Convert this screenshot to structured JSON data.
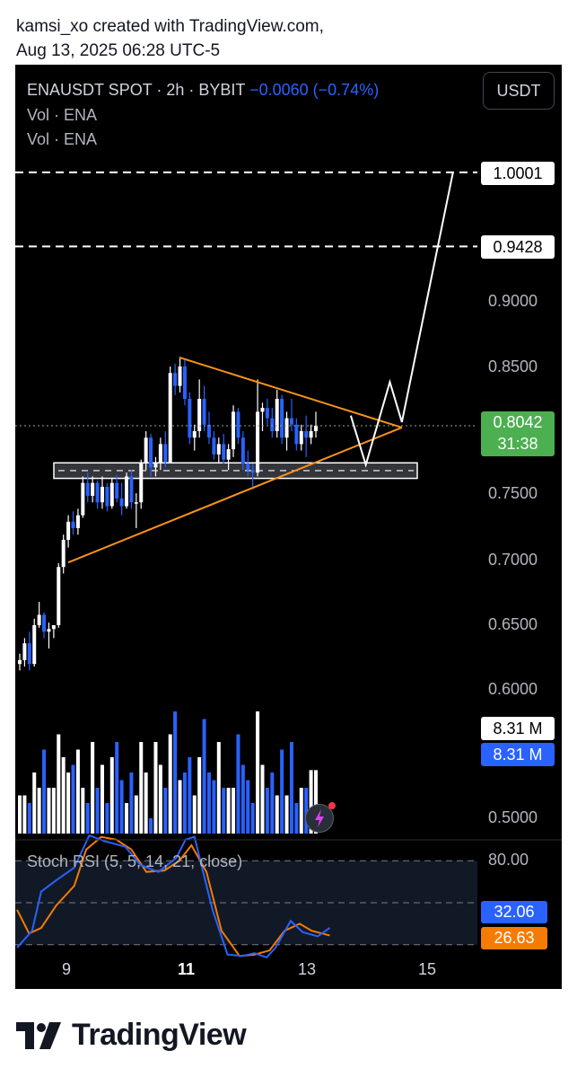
{
  "credit": {
    "line1": "kamsi_xo created with TradingView.com,",
    "line2": "Aug 13, 2025 06:28 UTC-5"
  },
  "header": {
    "symbol_info": "ENAUSDT SPOT · 2h · BYBIT",
    "change": "−0.0060 (−0.74%)",
    "vol_line1": "Vol · ENA",
    "vol_line2": "Vol · ENA",
    "currency_button": "USDT"
  },
  "price_axis": {
    "labels": [
      "0.9000",
      "0.8500",
      "0.7500",
      "0.7000",
      "0.6500",
      "0.6000",
      "0.5000"
    ],
    "hline_high": "1.0001",
    "hline_mid": "0.9428",
    "last_price": "0.8042",
    "countdown": "31:38",
    "volume_a": "8.31 M",
    "volume_b": "8.31 M"
  },
  "stoch": {
    "label": "Stoch RSI (5, 5, 14, 21, close)",
    "level_80": "80.00",
    "k_value": "32.06",
    "d_value": "26.63"
  },
  "time_axis": {
    "labels": [
      "9",
      "11",
      "13",
      "15"
    ]
  },
  "footer": {
    "brand": "TradingView"
  },
  "colors": {
    "bull": "#ffffff",
    "bear": "#2962ff",
    "pattern": "#f7931a",
    "last_price_tag": "#4caf50",
    "stoch_k": "#2962ff",
    "stoch_d": "#f57c00"
  },
  "chart_data": {
    "type": "candlestick",
    "symbol": "ENAUSDT",
    "ylim": [
      0.49,
      1.04
    ],
    "x_ticks": [
      9,
      11,
      13,
      15
    ],
    "xlim": [
      8.15,
      15.65
    ],
    "horizontal_levels": [
      1.0001,
      0.9428
    ],
    "last_price": 0.8042,
    "support_zone": [
      0.7635,
      0.7755
    ],
    "candles": [
      [
        0.62,
        0.628,
        0.615,
        0.623
      ],
      [
        0.623,
        0.64,
        0.618,
        0.636
      ],
      [
        0.636,
        0.645,
        0.615,
        0.62
      ],
      [
        0.62,
        0.655,
        0.618,
        0.65
      ],
      [
        0.65,
        0.668,
        0.648,
        0.658
      ],
      [
        0.658,
        0.66,
        0.64,
        0.645
      ],
      [
        0.645,
        0.652,
        0.632,
        0.647
      ],
      [
        0.647,
        0.65,
        0.64,
        0.65
      ],
      [
        0.65,
        0.698,
        0.648,
        0.695
      ],
      [
        0.695,
        0.72,
        0.69,
        0.716
      ],
      [
        0.716,
        0.735,
        0.71,
        0.73
      ],
      [
        0.73,
        0.738,
        0.72,
        0.725
      ],
      [
        0.725,
        0.74,
        0.72,
        0.735
      ],
      [
        0.735,
        0.765,
        0.733,
        0.76
      ],
      [
        0.76,
        0.768,
        0.745,
        0.75
      ],
      [
        0.75,
        0.765,
        0.745,
        0.76
      ],
      [
        0.76,
        0.762,
        0.74,
        0.745
      ],
      [
        0.745,
        0.765,
        0.74,
        0.757
      ],
      [
        0.757,
        0.76,
        0.738,
        0.742
      ],
      [
        0.742,
        0.764,
        0.74,
        0.76
      ],
      [
        0.76,
        0.766,
        0.745,
        0.748
      ],
      [
        0.748,
        0.76,
        0.735,
        0.742
      ],
      [
        0.742,
        0.768,
        0.74,
        0.765
      ],
      [
        0.765,
        0.77,
        0.74,
        0.745
      ],
      [
        0.745,
        0.752,
        0.725,
        0.745
      ],
      [
        0.745,
        0.778,
        0.74,
        0.775
      ],
      [
        0.775,
        0.8,
        0.77,
        0.795
      ],
      [
        0.795,
        0.798,
        0.765,
        0.772
      ],
      [
        0.772,
        0.78,
        0.765,
        0.775
      ],
      [
        0.775,
        0.795,
        0.77,
        0.79
      ],
      [
        0.79,
        0.8,
        0.772,
        0.776
      ],
      [
        0.776,
        0.85,
        0.775,
        0.845
      ],
      [
        0.845,
        0.852,
        0.828,
        0.835
      ],
      [
        0.835,
        0.857,
        0.83,
        0.85
      ],
      [
        0.85,
        0.855,
        0.82,
        0.825
      ],
      [
        0.825,
        0.83,
        0.79,
        0.795
      ],
      [
        0.795,
        0.805,
        0.785,
        0.8
      ],
      [
        0.8,
        0.84,
        0.795,
        0.825
      ],
      [
        0.825,
        0.835,
        0.8,
        0.805
      ],
      [
        0.805,
        0.815,
        0.79,
        0.795
      ],
      [
        0.795,
        0.8,
        0.778,
        0.782
      ],
      [
        0.782,
        0.795,
        0.775,
        0.79
      ],
      [
        0.79,
        0.798,
        0.775,
        0.778
      ],
      [
        0.778,
        0.79,
        0.77,
        0.786
      ],
      [
        0.786,
        0.82,
        0.78,
        0.815
      ],
      [
        0.815,
        0.818,
        0.79,
        0.795
      ],
      [
        0.795,
        0.8,
        0.77,
        0.775
      ],
      [
        0.775,
        0.785,
        0.765,
        0.77
      ],
      [
        0.77,
        0.775,
        0.755,
        0.768
      ],
      [
        0.768,
        0.84,
        0.765,
        0.815
      ],
      [
        0.815,
        0.822,
        0.8,
        0.818
      ],
      [
        0.818,
        0.825,
        0.805,
        0.81
      ],
      [
        0.81,
        0.818,
        0.795,
        0.8
      ],
      [
        0.8,
        0.832,
        0.795,
        0.825
      ],
      [
        0.825,
        0.828,
        0.79,
        0.795
      ],
      [
        0.795,
        0.815,
        0.785,
        0.81
      ],
      [
        0.81,
        0.825,
        0.8,
        0.805
      ],
      [
        0.805,
        0.81,
        0.785,
        0.79
      ],
      [
        0.79,
        0.805,
        0.785,
        0.8
      ],
      [
        0.8,
        0.812,
        0.78,
        0.795
      ],
      [
        0.795,
        0.805,
        0.79,
        0.8
      ],
      [
        0.8,
        0.815,
        0.795,
        0.8042
      ]
    ],
    "volume_ylim": [
      0,
      20
    ],
    "volume": [
      5,
      5,
      4,
      8,
      6,
      11,
      6,
      6,
      13,
      10,
      8,
      9,
      11,
      6,
      4,
      12,
      6,
      9,
      4,
      10,
      12,
      7,
      4,
      8,
      5,
      12,
      8,
      2,
      12,
      9,
      6,
      13,
      16,
      7,
      8,
      10,
      5,
      10,
      15,
      8,
      7,
      12,
      6,
      6,
      6,
      13,
      9,
      7,
      4,
      16,
      9,
      6,
      8,
      5,
      11,
      5,
      12,
      4,
      6,
      6,
      8.31,
      8.31
    ],
    "triangle_upper": [
      [
        10.85,
        0.857
      ],
      [
        14.55,
        0.8028
      ]
    ],
    "triangle_lower": [
      [
        9.0,
        0.6985
      ],
      [
        14.55,
        0.8028
      ]
    ],
    "projection_path": [
      [
        13.7,
        0.812
      ],
      [
        13.95,
        0.774
      ],
      [
        14.35,
        0.838
      ],
      [
        14.55,
        0.807
      ],
      [
        15.4,
        1.0001
      ]
    ],
    "stoch_rsi": {
      "params": "5, 5, 14, 21, close",
      "ylim": [
        0,
        100
      ],
      "levels": [
        80,
        50,
        20
      ],
      "k": [
        [
          8.15,
          18
        ],
        [
          8.4,
          30
        ],
        [
          8.55,
          58
        ],
        [
          8.8,
          66
        ],
        [
          9.1,
          75
        ],
        [
          9.35,
          98
        ],
        [
          9.6,
          94
        ],
        [
          9.95,
          90
        ],
        [
          10.2,
          77
        ],
        [
          10.5,
          72
        ],
        [
          10.8,
          82
        ],
        [
          10.95,
          95
        ],
        [
          11.1,
          97
        ],
        [
          11.4,
          45
        ],
        [
          11.65,
          13
        ],
        [
          11.9,
          12
        ],
        [
          12.1,
          14
        ],
        [
          12.3,
          11
        ],
        [
          12.45,
          18
        ],
        [
          12.7,
          37
        ],
        [
          12.9,
          29
        ],
        [
          13.15,
          26
        ],
        [
          13.35,
          32.06
        ]
      ],
      "d": [
        [
          8.15,
          45
        ],
        [
          8.35,
          28
        ],
        [
          8.55,
          32
        ],
        [
          8.8,
          48
        ],
        [
          9.1,
          62
        ],
        [
          9.3,
          88
        ],
        [
          9.55,
          97
        ],
        [
          9.8,
          95
        ],
        [
          10.05,
          88
        ],
        [
          10.3,
          72
        ],
        [
          10.6,
          73
        ],
        [
          10.85,
          80
        ],
        [
          11.05,
          91
        ],
        [
          11.3,
          72
        ],
        [
          11.55,
          30
        ],
        [
          11.85,
          12
        ],
        [
          12.1,
          13
        ],
        [
          12.35,
          16
        ],
        [
          12.6,
          30
        ],
        [
          12.85,
          35
        ],
        [
          13.05,
          30
        ],
        [
          13.35,
          26.63
        ]
      ]
    }
  }
}
